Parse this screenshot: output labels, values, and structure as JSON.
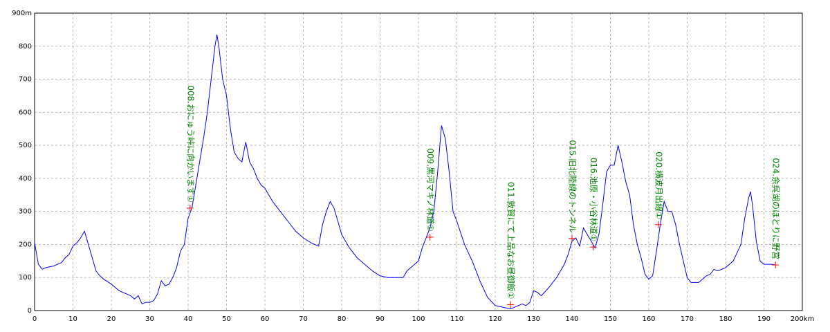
{
  "chart_data": {
    "type": "line",
    "x": [
      0,
      1,
      2,
      3,
      5,
      7,
      8,
      9,
      10,
      11,
      12,
      13,
      14,
      15,
      16,
      17,
      18,
      20,
      22,
      24,
      25,
      26,
      27,
      28,
      29,
      30,
      31,
      32,
      33,
      34,
      35,
      36,
      37,
      38,
      39,
      40,
      41,
      42,
      43,
      44,
      45,
      46,
      47,
      47.5,
      48,
      49,
      50,
      51,
      52,
      53,
      54,
      55,
      56,
      57,
      58,
      59,
      60,
      62,
      64,
      66,
      68,
      70,
      72,
      73,
      74,
      75,
      76,
      77,
      78,
      79,
      80,
      82,
      84,
      86,
      88,
      90,
      92,
      94,
      96,
      97,
      98,
      100,
      101,
      102,
      103,
      104,
      105,
      106,
      107,
      108,
      109,
      110,
      112,
      114,
      116,
      118,
      120,
      122,
      124,
      126,
      127,
      128,
      129,
      130,
      131,
      132,
      134,
      136,
      138,
      139,
      140,
      141,
      142,
      143,
      144,
      145,
      146,
      147,
      148,
      149,
      150,
      151,
      152,
      153,
      154,
      155,
      156,
      157,
      158,
      159,
      160,
      161,
      162,
      163,
      164,
      165,
      166,
      167,
      168,
      169,
      170,
      171,
      172,
      173,
      174,
      175,
      176,
      177,
      178,
      180,
      182,
      184,
      185,
      186,
      186.5,
      187,
      188,
      189,
      190,
      192,
      193
    ],
    "values": [
      205,
      140,
      125,
      130,
      135,
      145,
      160,
      170,
      195,
      205,
      220,
      240,
      200,
      160,
      120,
      105,
      95,
      80,
      60,
      50,
      45,
      35,
      45,
      20,
      25,
      25,
      30,
      50,
      90,
      75,
      80,
      100,
      130,
      180,
      200,
      280,
      310,
      380,
      450,
      520,
      600,
      700,
      800,
      835,
      800,
      700,
      650,
      550,
      480,
      460,
      450,
      510,
      450,
      430,
      400,
      380,
      370,
      330,
      300,
      270,
      240,
      220,
      205,
      200,
      195,
      260,
      300,
      330,
      310,
      270,
      230,
      190,
      160,
      140,
      120,
      105,
      100,
      100,
      100,
      120,
      130,
      150,
      190,
      220,
      250,
      300,
      420,
      560,
      520,
      420,
      300,
      270,
      200,
      150,
      90,
      40,
      15,
      10,
      5,
      15,
      20,
      15,
      25,
      60,
      55,
      45,
      70,
      100,
      140,
      170,
      210,
      220,
      195,
      250,
      230,
      210,
      190,
      230,
      320,
      420,
      440,
      440,
      500,
      450,
      390,
      350,
      260,
      200,
      160,
      110,
      95,
      105,
      180,
      260,
      330,
      300,
      300,
      260,
      200,
      150,
      100,
      85,
      85,
      85,
      95,
      105,
      110,
      125,
      120,
      130,
      150,
      200,
      280,
      340,
      360,
      320,
      210,
      150,
      140,
      140,
      138
    ],
    "color": "#0000ff",
    "xlim": [
      0,
      200
    ],
    "ylim": [
      0,
      900
    ],
    "xticks": [
      0,
      10,
      20,
      30,
      40,
      50,
      60,
      70,
      80,
      90,
      100,
      110,
      120,
      130,
      140,
      150,
      160,
      170,
      180,
      190,
      {
        "value": 200,
        "label": "200km"
      }
    ],
    "yticks": [
      0,
      100,
      200,
      300,
      400,
      500,
      600,
      700,
      800,
      {
        "value": 900,
        "label": "900m"
      }
    ],
    "grid": true,
    "annotation_color": "#008000",
    "marker_color": "#ff0000",
    "annotations": [
      {
        "label": "008.おにゅう峠に向かいます①",
        "x": 40.5,
        "y": 310
      },
      {
        "label": "009.黒河マキノ林道①",
        "x": 103,
        "y": 222
      },
      {
        "label": "011.敦賀にて上品なお昼御飯①",
        "x": 124,
        "y": 18
      },
      {
        "label": "015.旧北陸線のトンネル",
        "x": 140,
        "y": 218
      },
      {
        "label": "016.池原・小谷林道①",
        "x": 145.5,
        "y": 192
      },
      {
        "label": "020.横波月出線①",
        "x": 162.5,
        "y": 260
      },
      {
        "label": "024.余呉湖のほとりに野営",
        "x": 193,
        "y": 138
      }
    ]
  }
}
